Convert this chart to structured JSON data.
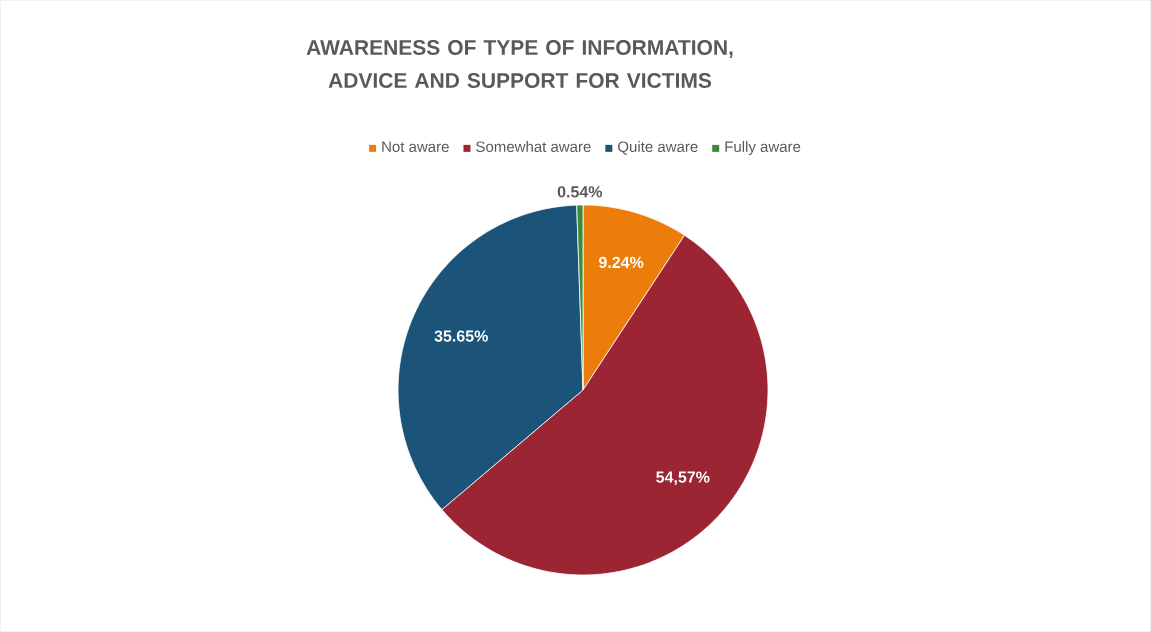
{
  "chart_data": {
    "type": "pie",
    "title": "AWARENESS OF TYPE OF INFORMATION, ADVICE AND SUPPORT FOR VICTIMS",
    "categories": [
      "Not aware",
      "Somewhat aware",
      "Quite aware",
      "Fully aware"
    ],
    "values": [
      9.24,
      54.57,
      35.65,
      0.54
    ],
    "colors": [
      "#ed7d0b",
      "#9b2533",
      "#1b5478",
      "#3c8a3c"
    ],
    "value_labels": [
      "9.24%",
      "54,57%",
      "35.65%",
      "0.54%"
    ],
    "legend": "top"
  }
}
